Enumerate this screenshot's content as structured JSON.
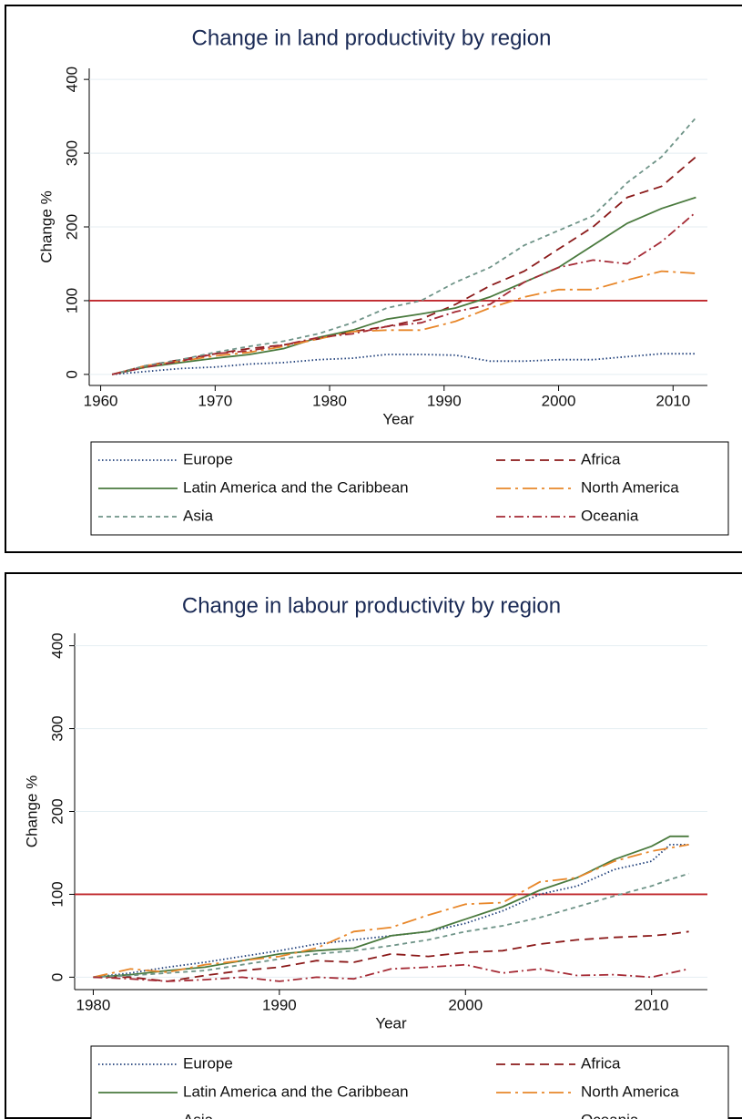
{
  "chart_data": [
    {
      "type": "line",
      "title": "Change in land productivity by region",
      "xlabel": "Year",
      "ylabel": "Change %",
      "x": [
        1961,
        1964,
        1967,
        1970,
        1973,
        1976,
        1979,
        1982,
        1985,
        1988,
        1991,
        1994,
        1997,
        2000,
        2003,
        2006,
        2009,
        2012
      ],
      "xlim": [
        1959,
        2013
      ],
      "xticks": [
        1960,
        1970,
        1980,
        1990,
        2000,
        2010
      ],
      "ylim": [
        -15,
        415
      ],
      "yticks": [
        0,
        100,
        200,
        300,
        400
      ],
      "grid": true,
      "hline": 100,
      "hline_color": "#c0282d",
      "series": [
        {
          "name": "Europe",
          "color": "#1f3f7a",
          "dash": "dotted",
          "values": [
            0,
            4,
            8,
            10,
            14,
            16,
            20,
            22,
            27,
            27,
            26,
            18,
            18,
            20,
            20,
            24,
            28,
            28
          ]
        },
        {
          "name": "Africa",
          "color": "#8b1a1a",
          "dash": "dashed",
          "values": [
            0,
            12,
            20,
            28,
            35,
            40,
            48,
            58,
            65,
            75,
            95,
            120,
            140,
            170,
            200,
            240,
            255,
            295
          ]
        },
        {
          "name": "Latin America and the Caribbean",
          "color": "#4a7a3e",
          "dash": "solid",
          "values": [
            0,
            10,
            16,
            22,
            27,
            35,
            50,
            60,
            75,
            82,
            90,
            105,
            125,
            145,
            175,
            205,
            225,
            240
          ]
        },
        {
          "name": "North America",
          "color": "#e8872a",
          "dash": "longdashdot",
          "values": [
            0,
            12,
            18,
            25,
            30,
            38,
            48,
            58,
            60,
            60,
            72,
            90,
            105,
            115,
            115,
            128,
            140,
            137
          ]
        },
        {
          "name": "Asia",
          "color": "#6f9488",
          "dash": "shortdash",
          "values": [
            0,
            12,
            20,
            30,
            38,
            45,
            55,
            70,
            90,
            100,
            125,
            145,
            175,
            195,
            215,
            260,
            295,
            348
          ]
        },
        {
          "name": "Oceania",
          "color": "#a52a35",
          "dash": "dashdot",
          "values": [
            0,
            10,
            18,
            28,
            32,
            40,
            50,
            55,
            65,
            70,
            85,
            95,
            125,
            145,
            155,
            150,
            180,
            220
          ]
        }
      ]
    },
    {
      "type": "line",
      "title": "Change in labour productivity by region",
      "xlabel": "Year",
      "ylabel": "Change %",
      "x": [
        1980,
        1982,
        1984,
        1986,
        1988,
        1990,
        1992,
        1994,
        1996,
        1998,
        2000,
        2002,
        2004,
        2006,
        2008,
        2010,
        2011,
        2012
      ],
      "xlim": [
        1979,
        2013
      ],
      "xticks": [
        1980,
        1990,
        2000,
        2010
      ],
      "ylim": [
        -15,
        415
      ],
      "yticks": [
        0,
        100,
        200,
        300,
        400
      ],
      "grid": true,
      "hline": 100,
      "hline_color": "#c0282d",
      "series": [
        {
          "name": "Europe",
          "color": "#1f3f7a",
          "dash": "dotted",
          "values": [
            0,
            5,
            12,
            18,
            25,
            32,
            40,
            45,
            50,
            55,
            65,
            80,
            100,
            110,
            130,
            140,
            160,
            160
          ]
        },
        {
          "name": "Africa",
          "color": "#8b1a1a",
          "dash": "dashed",
          "values": [
            0,
            0,
            -5,
            2,
            8,
            12,
            20,
            18,
            28,
            25,
            30,
            32,
            40,
            45,
            48,
            50,
            52,
            55
          ]
        },
        {
          "name": "Latin America and the Caribbean",
          "color": "#4a7a3e",
          "dash": "solid",
          "values": [
            0,
            3,
            8,
            12,
            20,
            28,
            32,
            35,
            50,
            55,
            70,
            85,
            105,
            120,
            142,
            158,
            170,
            170
          ]
        },
        {
          "name": "North America",
          "color": "#e8872a",
          "dash": "longdashdot",
          "values": [
            0,
            10,
            6,
            15,
            20,
            25,
            35,
            55,
            60,
            75,
            88,
            90,
            115,
            120,
            140,
            152,
            156,
            160
          ]
        },
        {
          "name": "Asia",
          "color": "#6f9488",
          "dash": "shortdash",
          "values": [
            0,
            2,
            5,
            8,
            15,
            22,
            28,
            32,
            38,
            45,
            55,
            62,
            72,
            85,
            98,
            110,
            118,
            125
          ]
        },
        {
          "name": "Oceania",
          "color": "#a52a35",
          "dash": "dashdot",
          "values": [
            0,
            -2,
            -5,
            -3,
            0,
            -5,
            0,
            -2,
            10,
            12,
            15,
            5,
            10,
            2,
            3,
            0,
            5,
            10
          ]
        }
      ]
    }
  ]
}
